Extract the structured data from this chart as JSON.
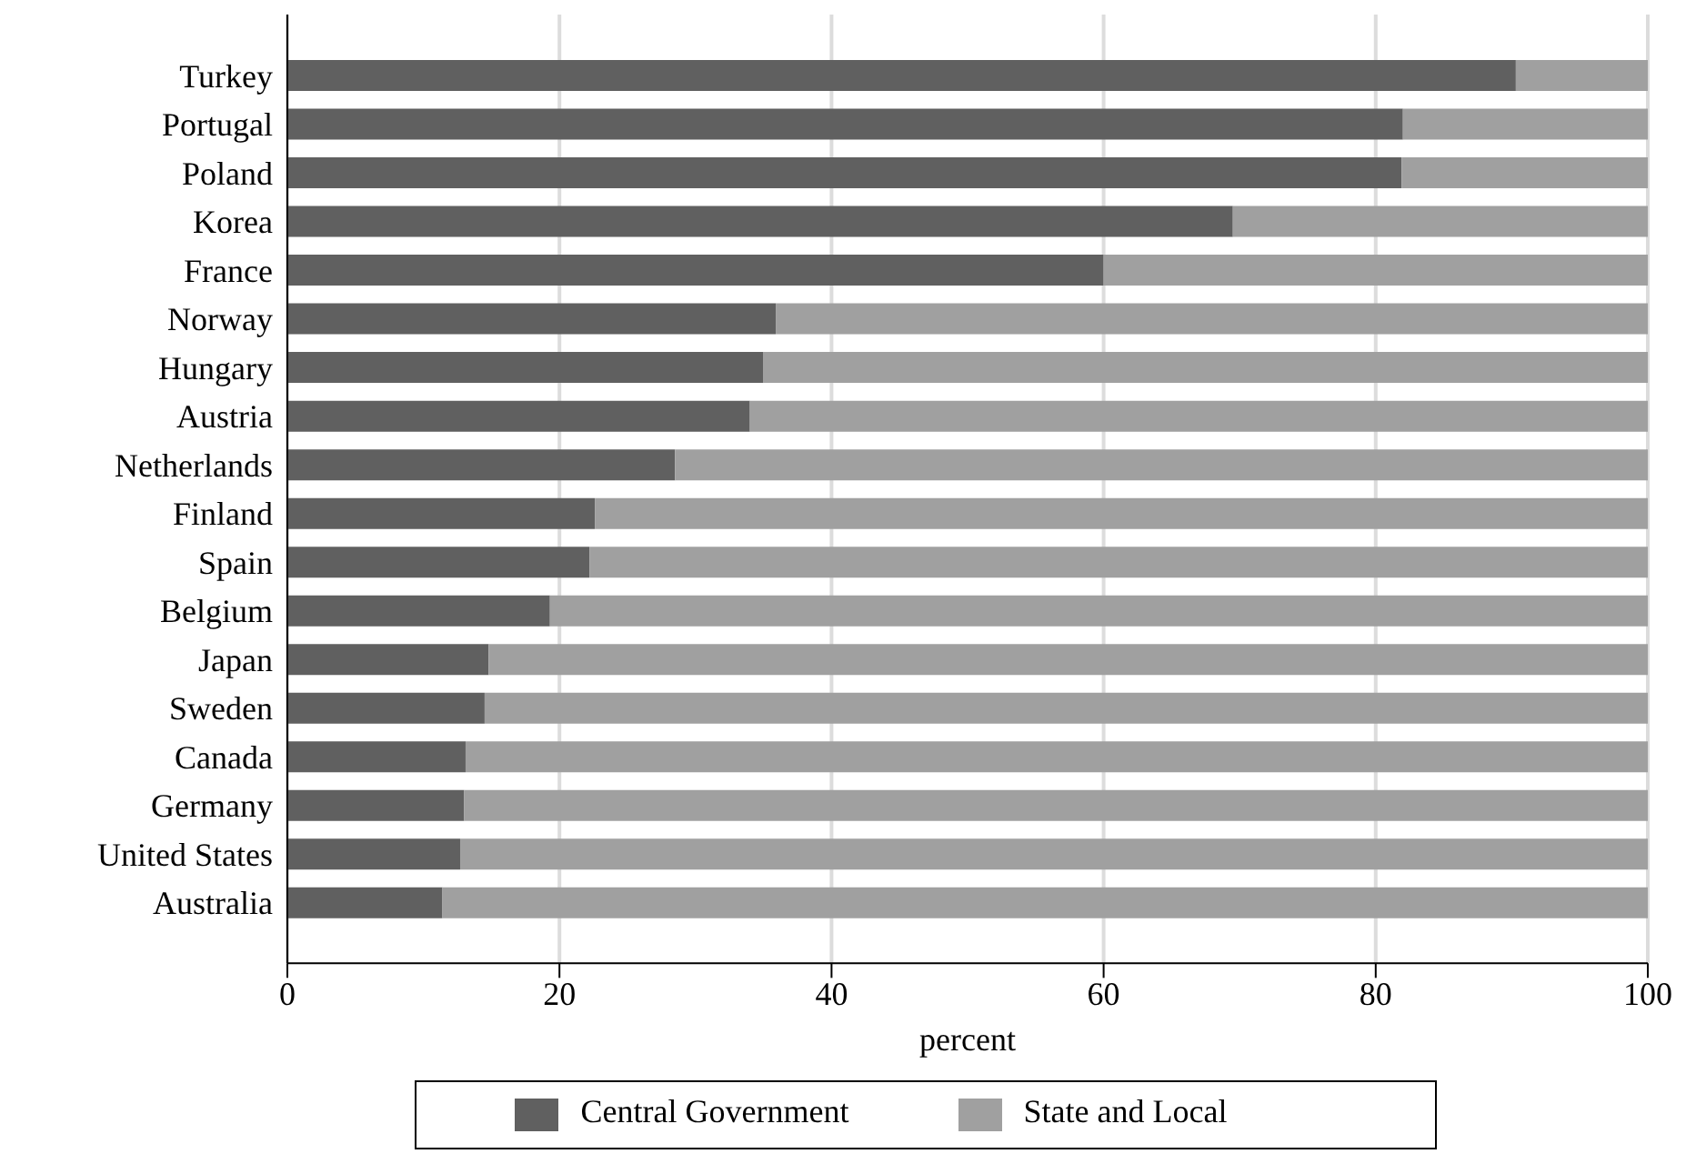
{
  "chart_data": {
    "type": "bar",
    "orientation": "horizontal",
    "stacked": true,
    "xlabel": "percent",
    "categories": [
      "Turkey",
      "Portugal",
      "Poland",
      "Korea",
      "France",
      "Norway",
      "Hungary",
      "Austria",
      "Netherlands",
      "Finland",
      "Spain",
      "Belgium",
      "Japan",
      "Sweden",
      "Canada",
      "Germany",
      "United States",
      "Australia"
    ],
    "series": [
      {
        "name": "Central Government",
        "color": "#606060",
        "values": [
          90.3,
          82.0,
          81.9,
          69.5,
          60.0,
          35.9,
          35.0,
          34.0,
          28.5,
          22.6,
          22.2,
          19.3,
          14.8,
          14.5,
          13.1,
          13.0,
          12.7,
          11.4
        ]
      },
      {
        "name": "State and Local",
        "color": "#a0a0a0",
        "values": [
          9.7,
          18.0,
          18.1,
          30.5,
          40.0,
          64.1,
          65.0,
          66.0,
          71.5,
          77.4,
          77.8,
          80.7,
          85.2,
          85.5,
          86.9,
          87.0,
          87.3,
          88.6
        ]
      }
    ],
    "xlim": [
      0,
      100
    ],
    "xticks": [
      0,
      20,
      40,
      60,
      80,
      100
    ],
    "grid": "x",
    "legend": "bottom"
  }
}
